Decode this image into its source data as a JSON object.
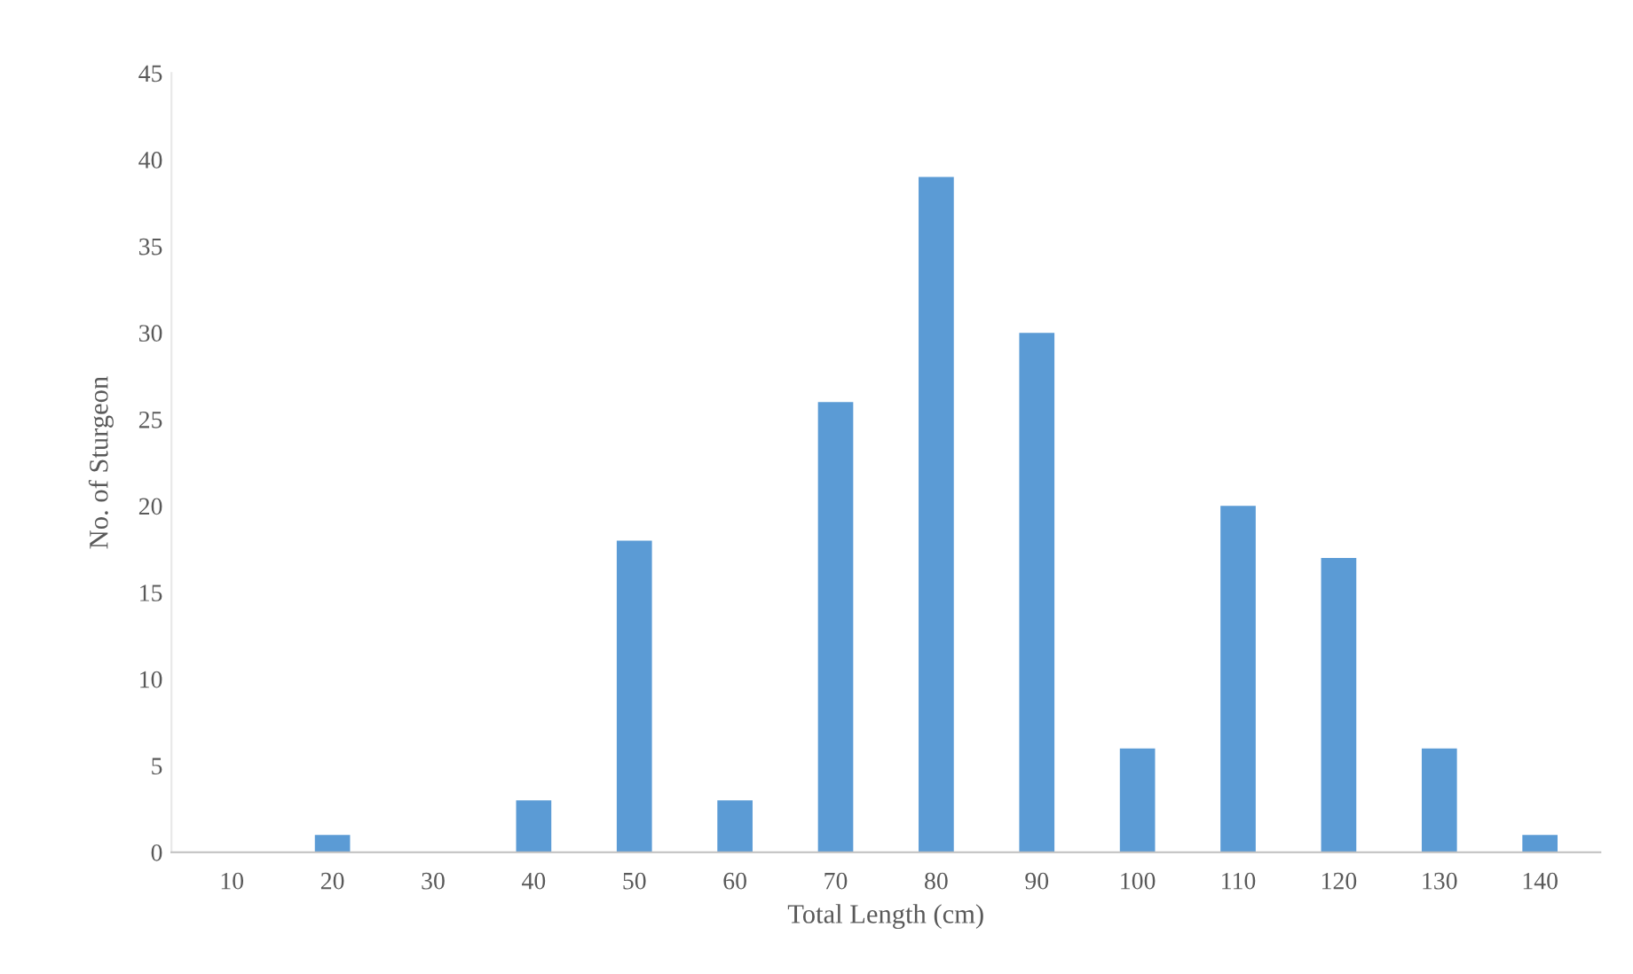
{
  "chart_data": {
    "type": "bar",
    "xlabel": "Total Length (cm)",
    "ylabel": "No. of Sturgeon",
    "categories": [
      "10",
      "20",
      "30",
      "40",
      "50",
      "60",
      "70",
      "80",
      "90",
      "100",
      "110",
      "120",
      "130",
      "140"
    ],
    "values": [
      0,
      1,
      0,
      3,
      18,
      3,
      26,
      39,
      30,
      6,
      20,
      17,
      6,
      1
    ],
    "color": "#5b9bd5",
    "ylim": [
      0,
      45
    ],
    "yticks": [
      0,
      5,
      10,
      15,
      20,
      25,
      30,
      35,
      40,
      45
    ],
    "grid": false,
    "legend": false
  }
}
